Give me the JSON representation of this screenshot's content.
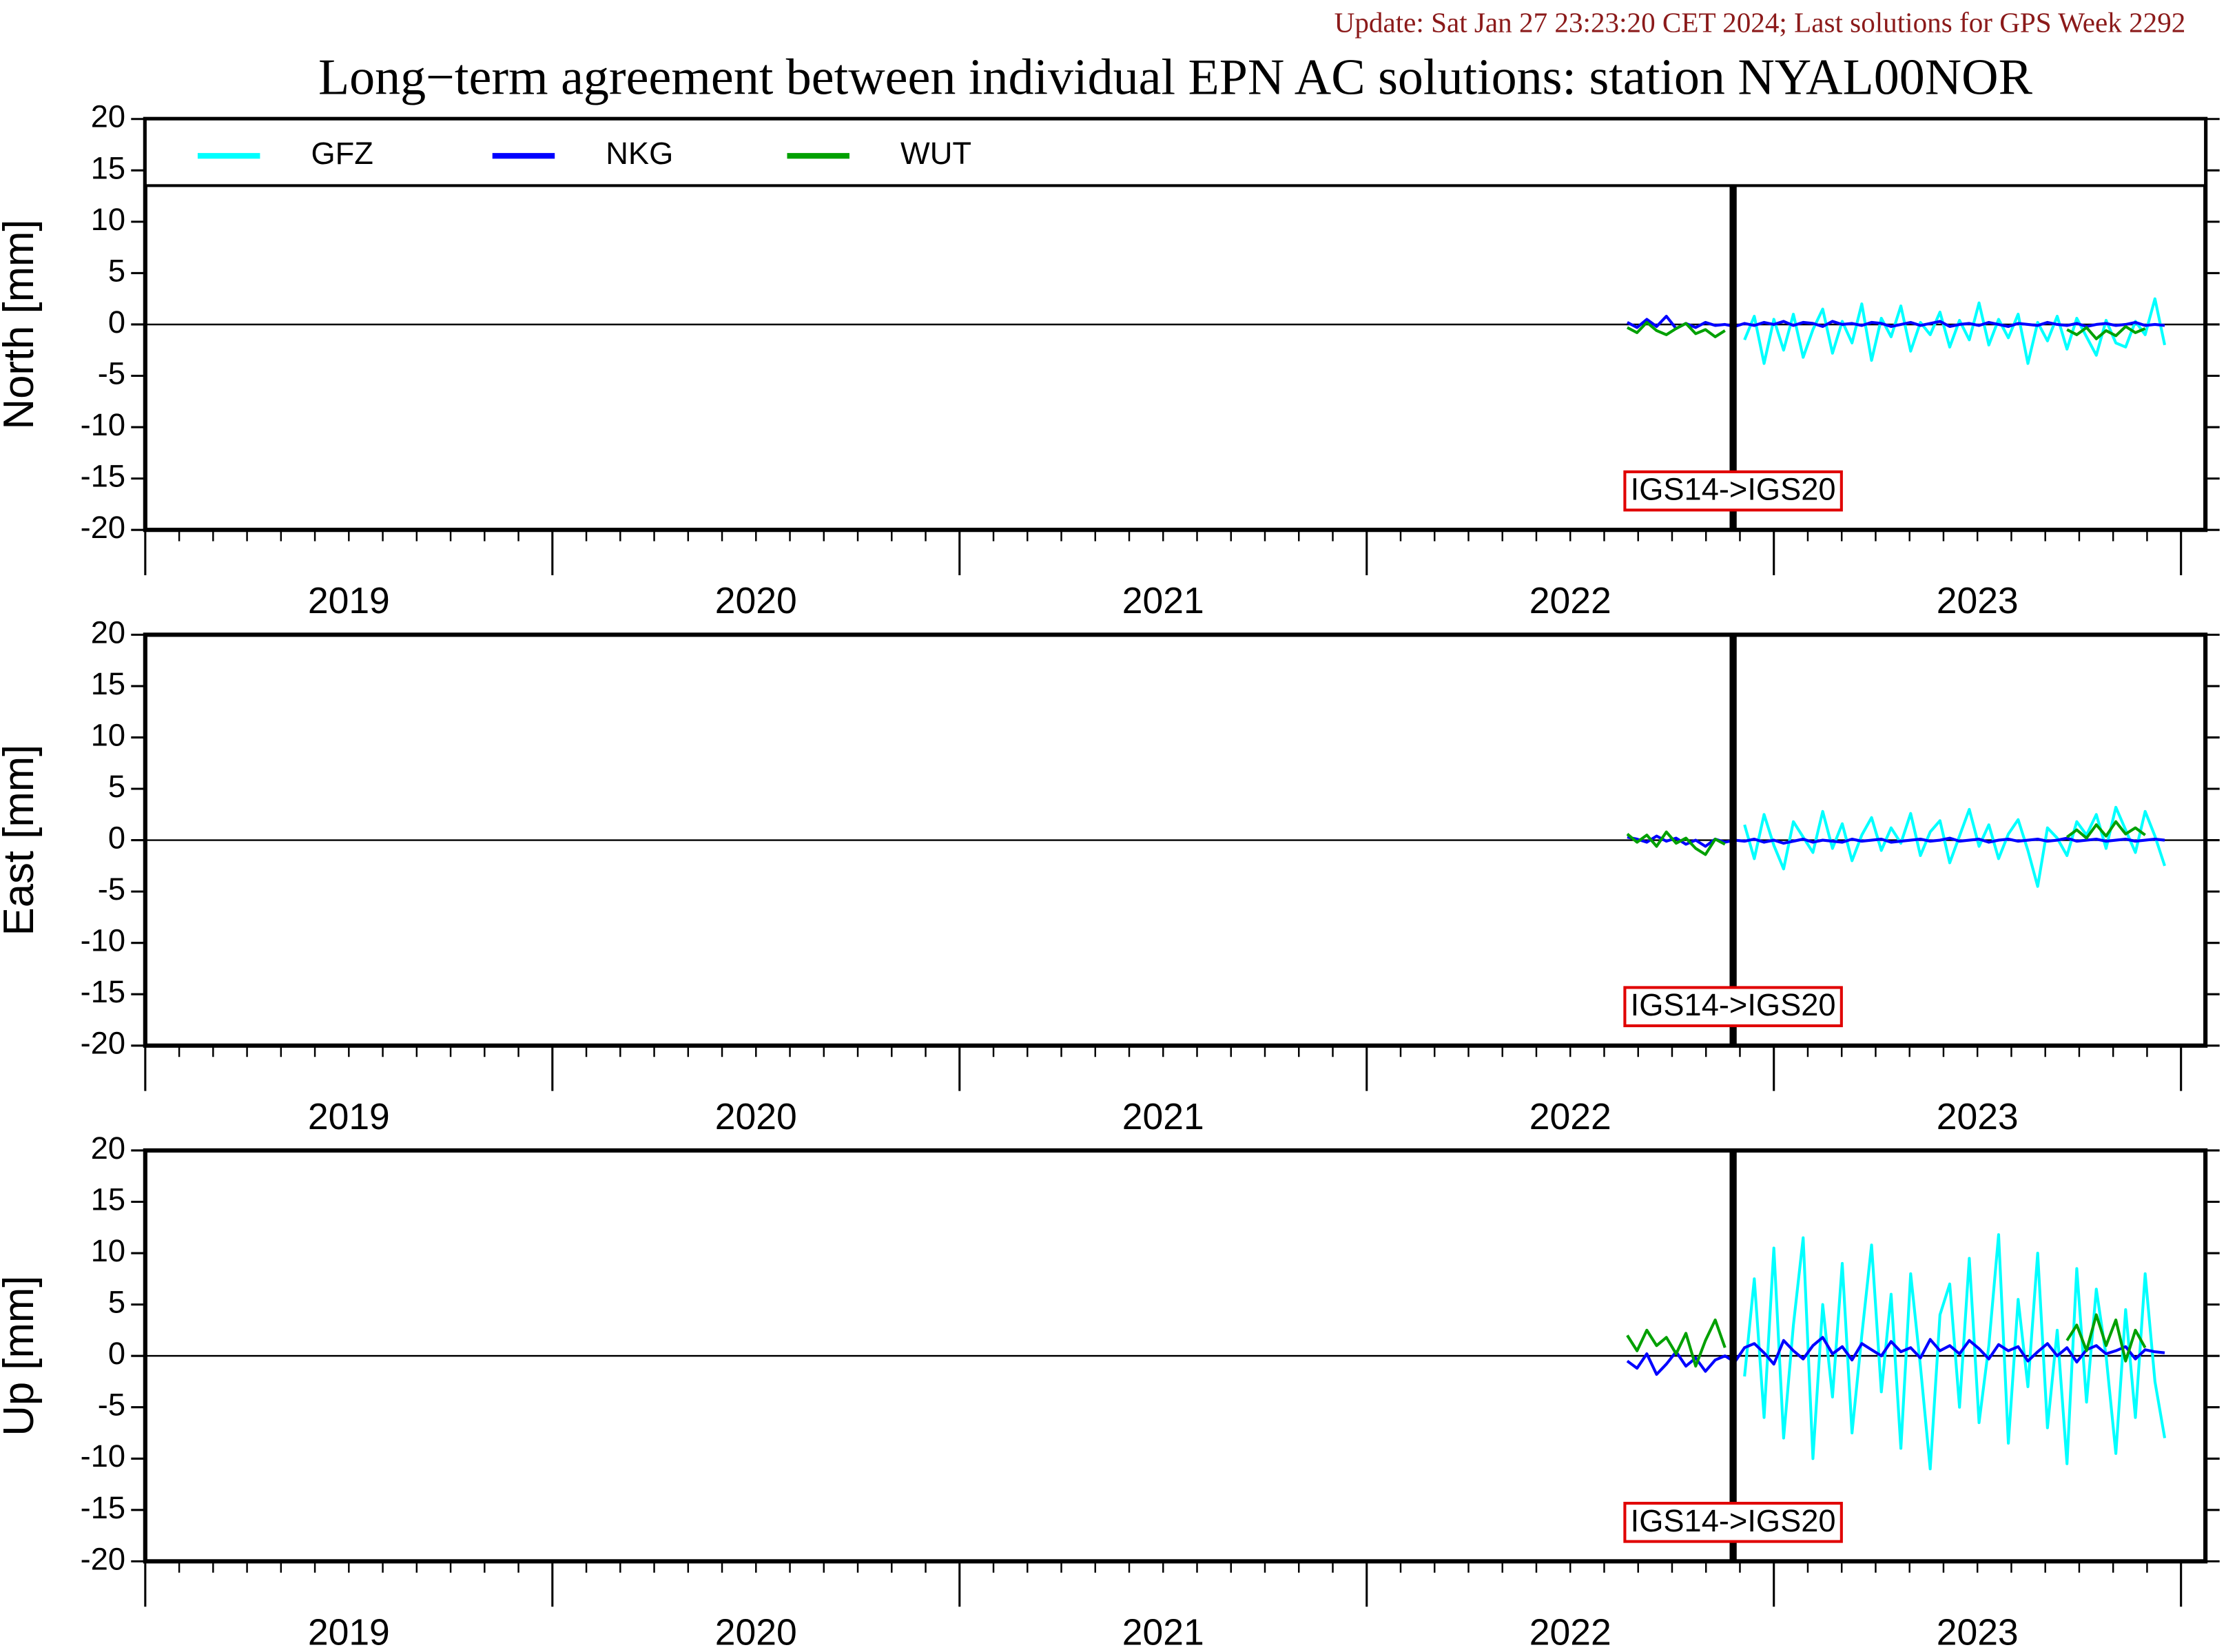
{
  "header": {
    "update": "Update: Sat Jan 27 23:23:20 CET 2024; Last solutions for GPS Week 2292",
    "title": "Long−term agreement between individual EPN AC solutions: station NYAL00NOR"
  },
  "chart_data": [
    {
      "type": "line",
      "ylabel": "North [mm]",
      "legend": "top-left",
      "xlim": [
        2019,
        2024.06
      ],
      "ylim": [
        -20,
        20
      ],
      "yticks": [
        -20,
        -15,
        -10,
        -5,
        0,
        5,
        10,
        15,
        20
      ],
      "xticks": [
        2019,
        2020,
        2021,
        2022,
        2023,
        2024
      ],
      "xtick_labels": [
        {
          "value": 2019.5,
          "label": "2019"
        },
        {
          "value": 2020.5,
          "label": "2020"
        },
        {
          "value": 2021.5,
          "label": "2021"
        },
        {
          "value": 2022.5,
          "label": "2022"
        },
        {
          "value": 2023.5,
          "label": "2023"
        }
      ],
      "annotations": [
        {
          "x": 2022.9,
          "label": "IGS14->IGS20"
        }
      ],
      "x": [
        2022.64,
        2022.664,
        2022.688,
        2022.712,
        2022.736,
        2022.76,
        2022.784,
        2022.808,
        2022.832,
        2022.856,
        2022.88,
        2022.904,
        2022.928,
        2022.952,
        2022.976,
        2023.0,
        2023.024,
        2023.048,
        2023.072,
        2023.096,
        2023.12,
        2023.144,
        2023.168,
        2023.192,
        2023.216,
        2023.24,
        2023.264,
        2023.288,
        2023.312,
        2023.336,
        2023.36,
        2023.384,
        2023.408,
        2023.432,
        2023.456,
        2023.48,
        2023.504,
        2023.528,
        2023.552,
        2023.576,
        2023.6,
        2023.624,
        2023.648,
        2023.672,
        2023.696,
        2023.72,
        2023.744,
        2023.768,
        2023.792,
        2023.816,
        2023.84,
        2023.864,
        2023.888,
        2023.912,
        2023.936,
        2023.96
      ],
      "series": [
        {
          "name": "GFZ",
          "color": "#00ffff",
          "values": [
            null,
            null,
            null,
            null,
            null,
            null,
            null,
            null,
            null,
            null,
            null,
            null,
            -1.5,
            0.8,
            -3.8,
            0.5,
            -2.5,
            1.0,
            -3.2,
            -0.5,
            1.5,
            -2.8,
            0.3,
            -1.8,
            2.0,
            -3.5,
            0.6,
            -1.2,
            1.8,
            -2.6,
            0.2,
            -1.0,
            1.2,
            -2.2,
            0.4,
            -1.5,
            2.1,
            -2.0,
            0.5,
            -1.3,
            1.0,
            -3.8,
            0.2,
            -1.6,
            0.8,
            -2.4,
            0.6,
            -1.2,
            -3.0,
            0.4,
            -1.8,
            -2.2,
            0.3,
            -1.0,
            2.5,
            -2.0
          ]
        },
        {
          "name": "NKG",
          "color": "#0000ff",
          "values": [
            0.2,
            -0.3,
            0.5,
            -0.2,
            0.8,
            -0.4,
            0.1,
            -0.3,
            0.2,
            -0.1,
            0.0,
            -0.2,
            0.1,
            -0.1,
            0.2,
            0.0,
            0.3,
            -0.1,
            0.2,
            0.1,
            -0.2,
            0.3,
            0.0,
            0.1,
            -0.1,
            0.2,
            0.1,
            -0.2,
            0.0,
            0.2,
            -0.1,
            0.1,
            0.3,
            -0.2,
            0.0,
            0.1,
            -0.1,
            0.2,
            0.0,
            -0.2,
            0.1,
            0.0,
            -0.1,
            0.2,
            0.0,
            -0.1,
            0.1,
            -0.2,
            0.0,
            0.1,
            -0.1,
            0.0,
            0.2,
            -0.1,
            0.0,
            -0.1
          ]
        },
        {
          "name": "WUT",
          "color": "#00a000",
          "values": [
            -0.3,
            -0.8,
            0.2,
            -0.6,
            -1.0,
            -0.4,
            0.1,
            -0.9,
            -0.5,
            -1.2,
            -0.6,
            null,
            null,
            null,
            null,
            null,
            null,
            null,
            null,
            null,
            null,
            null,
            null,
            null,
            null,
            null,
            null,
            null,
            null,
            null,
            null,
            null,
            null,
            null,
            null,
            null,
            null,
            null,
            null,
            null,
            null,
            null,
            null,
            null,
            null,
            -0.5,
            -1.0,
            -0.3,
            -1.4,
            -0.6,
            -1.1,
            -0.2,
            -0.8,
            -0.4,
            null,
            null
          ]
        }
      ]
    },
    {
      "type": "line",
      "ylabel": "East [mm]",
      "xlim": [
        2019,
        2024.06
      ],
      "ylim": [
        -20,
        20
      ],
      "yticks": [
        -20,
        -15,
        -10,
        -5,
        0,
        5,
        10,
        15,
        20
      ],
      "xticks": [
        2019,
        2020,
        2021,
        2022,
        2023,
        2024
      ],
      "xtick_labels": [
        {
          "value": 2019.5,
          "label": "2019"
        },
        {
          "value": 2020.5,
          "label": "2020"
        },
        {
          "value": 2021.5,
          "label": "2021"
        },
        {
          "value": 2022.5,
          "label": "2022"
        },
        {
          "value": 2023.5,
          "label": "2023"
        }
      ],
      "annotations": [
        {
          "x": 2022.9,
          "label": "IGS14->IGS20"
        }
      ],
      "x": [
        2022.64,
        2022.664,
        2022.688,
        2022.712,
        2022.736,
        2022.76,
        2022.784,
        2022.808,
        2022.832,
        2022.856,
        2022.88,
        2022.904,
        2022.928,
        2022.952,
        2022.976,
        2023.0,
        2023.024,
        2023.048,
        2023.072,
        2023.096,
        2023.12,
        2023.144,
        2023.168,
        2023.192,
        2023.216,
        2023.24,
        2023.264,
        2023.288,
        2023.312,
        2023.336,
        2023.36,
        2023.384,
        2023.408,
        2023.432,
        2023.456,
        2023.48,
        2023.504,
        2023.528,
        2023.552,
        2023.576,
        2023.6,
        2023.624,
        2023.648,
        2023.672,
        2023.696,
        2023.72,
        2023.744,
        2023.768,
        2023.792,
        2023.816,
        2023.84,
        2023.864,
        2023.888,
        2023.912,
        2023.936,
        2023.96
      ],
      "series": [
        {
          "color": "#00ffff",
          "values": [
            null,
            null,
            null,
            null,
            null,
            null,
            null,
            null,
            null,
            null,
            null,
            null,
            1.5,
            -1.8,
            2.5,
            -0.5,
            -2.8,
            1.8,
            0.3,
            -1.2,
            2.8,
            -0.8,
            1.6,
            -2.0,
            0.5,
            2.2,
            -1.0,
            1.2,
            -0.3,
            2.6,
            -1.5,
            0.8,
            1.9,
            -2.2,
            0.4,
            3.0,
            -0.6,
            1.5,
            -1.8,
            0.6,
            2.0,
            -1.0,
            -4.5,
            1.2,
            0.2,
            -1.5,
            1.8,
            0.5,
            2.5,
            -0.8,
            3.2,
            1.0,
            -1.2,
            2.8,
            0.4,
            -2.5
          ]
        },
        {
          "color": "#0000ff",
          "values": [
            0.3,
            0.1,
            -0.2,
            0.4,
            -0.1,
            0.2,
            -0.4,
            0.0,
            -0.6,
            0.1,
            -0.2,
            0.0,
            -0.1,
            0.1,
            -0.2,
            0.0,
            -0.3,
            -0.1,
            0.1,
            -0.2,
            0.0,
            -0.1,
            -0.2,
            0.1,
            -0.1,
            0.0,
            0.1,
            -0.2,
            -0.1,
            0.0,
            0.1,
            -0.1,
            0.0,
            0.2,
            -0.1,
            0.0,
            0.1,
            -0.2,
            0.0,
            0.1,
            -0.1,
            0.0,
            0.1,
            -0.1,
            0.0,
            0.2,
            -0.1,
            0.0,
            0.1,
            -0.1,
            0.0,
            0.1,
            -0.1,
            0.0,
            0.1,
            0.0
          ]
        },
        {
          "color": "#00a000",
          "values": [
            0.6,
            -0.2,
            0.5,
            -0.6,
            0.8,
            -0.3,
            0.2,
            -0.8,
            -1.4,
            0.1,
            -0.4,
            null,
            null,
            null,
            null,
            null,
            null,
            null,
            null,
            null,
            null,
            null,
            null,
            null,
            null,
            null,
            null,
            null,
            null,
            null,
            null,
            null,
            null,
            null,
            null,
            null,
            null,
            null,
            null,
            null,
            null,
            null,
            null,
            null,
            null,
            0.3,
            1.0,
            0.2,
            1.5,
            0.4,
            1.8,
            0.6,
            1.2,
            0.5,
            null,
            null
          ]
        }
      ]
    },
    {
      "type": "line",
      "ylabel": "Up [mm]",
      "xlim": [
        2019,
        2024.06
      ],
      "ylim": [
        -20,
        20
      ],
      "yticks": [
        -20,
        -15,
        -10,
        -5,
        0,
        5,
        10,
        15,
        20
      ],
      "xticks": [
        2019,
        2020,
        2021,
        2022,
        2023,
        2024
      ],
      "xtick_labels": [
        {
          "value": 2019.5,
          "label": "2019"
        },
        {
          "value": 2020.5,
          "label": "2020"
        },
        {
          "value": 2021.5,
          "label": "2021"
        },
        {
          "value": 2022.5,
          "label": "2022"
        },
        {
          "value": 2023.5,
          "label": "2023"
        }
      ],
      "annotations": [
        {
          "x": 2022.9,
          "label": "IGS14->IGS20"
        }
      ],
      "x": [
        2022.64,
        2022.664,
        2022.688,
        2022.712,
        2022.736,
        2022.76,
        2022.784,
        2022.808,
        2022.832,
        2022.856,
        2022.88,
        2022.904,
        2022.928,
        2022.952,
        2022.976,
        2023.0,
        2023.024,
        2023.048,
        2023.072,
        2023.096,
        2023.12,
        2023.144,
        2023.168,
        2023.192,
        2023.216,
        2023.24,
        2023.264,
        2023.288,
        2023.312,
        2023.336,
        2023.36,
        2023.384,
        2023.408,
        2023.432,
        2023.456,
        2023.48,
        2023.504,
        2023.528,
        2023.552,
        2023.576,
        2023.6,
        2023.624,
        2023.648,
        2023.672,
        2023.696,
        2023.72,
        2023.744,
        2023.768,
        2023.792,
        2023.816,
        2023.84,
        2023.864,
        2023.888,
        2023.912,
        2023.936,
        2023.96
      ],
      "series": [
        {
          "color": "#00ffff",
          "values": [
            null,
            null,
            null,
            null,
            null,
            null,
            null,
            null,
            null,
            null,
            null,
            null,
            -2.0,
            7.5,
            -6.0,
            10.5,
            -8.0,
            3.0,
            11.5,
            -10.0,
            5.0,
            -4.0,
            9.0,
            -7.5,
            2.0,
            10.8,
            -3.5,
            6.0,
            -9.0,
            8.0,
            -1.0,
            -11.0,
            4.0,
            7.0,
            -5.0,
            9.5,
            -6.5,
            1.0,
            11.8,
            -8.5,
            5.5,
            -3.0,
            10.0,
            -7.0,
            2.5,
            -10.5,
            8.5,
            -4.5,
            6.5,
            0.0,
            -9.5,
            4.5,
            -6.0,
            8.0,
            -2.5,
            -8.0
          ]
        },
        {
          "color": "#0000ff",
          "values": [
            -0.5,
            -1.2,
            0.2,
            -1.8,
            -0.8,
            0.4,
            -1.0,
            -0.2,
            -1.5,
            -0.4,
            0.0,
            -0.6,
            0.8,
            1.2,
            0.3,
            -0.8,
            1.5,
            0.5,
            -0.3,
            1.0,
            1.8,
            0.2,
            0.9,
            -0.4,
            1.2,
            0.6,
            0.0,
            1.4,
            0.4,
            0.8,
            -0.2,
            1.6,
            0.5,
            1.0,
            0.2,
            1.5,
            0.7,
            -0.3,
            1.1,
            0.5,
            0.9,
            -0.5,
            0.4,
            1.2,
            0.0,
            0.8,
            -0.6,
            0.6,
            1.0,
            0.2,
            0.5,
            0.9,
            -0.3,
            0.6,
            0.4,
            0.3
          ]
        },
        {
          "color": "#00a000",
          "values": [
            2.0,
            0.5,
            2.5,
            1.0,
            1.8,
            0.2,
            2.2,
            -1.0,
            1.5,
            3.5,
            0.8,
            null,
            null,
            null,
            null,
            null,
            null,
            null,
            null,
            null,
            null,
            null,
            null,
            null,
            null,
            null,
            null,
            null,
            null,
            null,
            null,
            null,
            null,
            null,
            null,
            null,
            null,
            null,
            null,
            null,
            null,
            null,
            null,
            null,
            null,
            1.5,
            3.0,
            0.5,
            4.0,
            1.0,
            3.5,
            -0.5,
            2.5,
            0.8,
            null,
            null
          ]
        }
      ]
    }
  ]
}
